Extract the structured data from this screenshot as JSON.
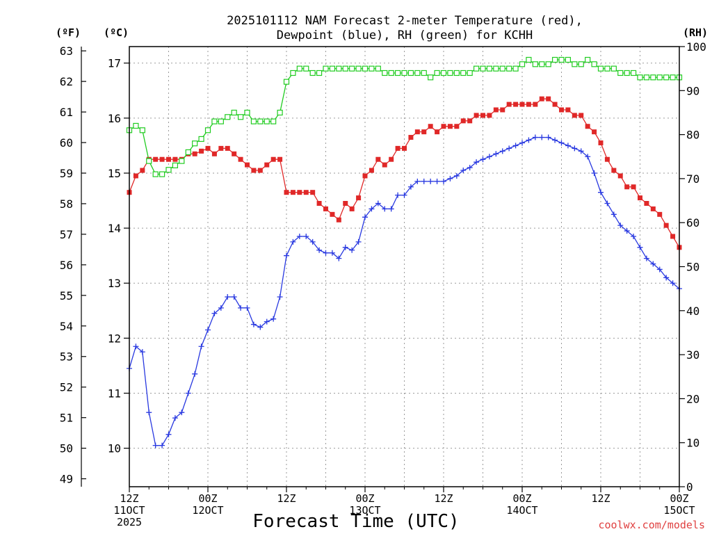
{
  "chart_data": {
    "type": "line",
    "title_line1": "2025101112 NAM Forecast 2-meter Temperature (red),",
    "title_line2": "Dewpoint (blue), RH (green) for KCHH",
    "xlabel": "Forecast Time (UTC)",
    "credit": "coolwx.com/models",
    "unit_f": "(ºF)",
    "unit_c": "(ºC)",
    "unit_rh": "(RH)",
    "x_hours_range": [
      0,
      84
    ],
    "celsius_range": [
      9.3,
      17.3
    ],
    "rh_range": [
      0,
      100
    ],
    "celsius_ticks": [
      10,
      11,
      12,
      13,
      14,
      15,
      16,
      17
    ],
    "fahrenheit_ticks": [
      49,
      50,
      51,
      52,
      53,
      54,
      55,
      56,
      57,
      58,
      59,
      60,
      61,
      62,
      63
    ],
    "rh_ticks": [
      0,
      10,
      20,
      30,
      40,
      50,
      60,
      70,
      80,
      90,
      100
    ],
    "x_ticks": [
      {
        "hour": 0,
        "lines": [
          "12Z",
          "11OCT",
          "2025"
        ]
      },
      {
        "hour": 12,
        "lines": [
          "00Z",
          "12OCT"
        ]
      },
      {
        "hour": 24,
        "lines": [
          "12Z"
        ]
      },
      {
        "hour": 36,
        "lines": [
          "00Z",
          "13OCT"
        ]
      },
      {
        "hour": 48,
        "lines": [
          "12Z"
        ]
      },
      {
        "hour": 60,
        "lines": [
          "00Z",
          "14OCT"
        ]
      },
      {
        "hour": 72,
        "lines": [
          "12Z"
        ]
      },
      {
        "hour": 84,
        "lines": [
          "00Z",
          "15OCT"
        ]
      }
    ],
    "hours": [
      0,
      1,
      2,
      3,
      4,
      5,
      6,
      7,
      8,
      9,
      10,
      11,
      12,
      13,
      14,
      15,
      16,
      17,
      18,
      19,
      20,
      21,
      22,
      23,
      24,
      25,
      26,
      27,
      28,
      29,
      30,
      31,
      32,
      33,
      34,
      35,
      36,
      37,
      38,
      39,
      40,
      41,
      42,
      43,
      44,
      45,
      46,
      47,
      48,
      49,
      50,
      51,
      52,
      53,
      54,
      55,
      56,
      57,
      58,
      59,
      60,
      61,
      62,
      63,
      64,
      65,
      66,
      67,
      68,
      69,
      70,
      71,
      72,
      73,
      74,
      75,
      76,
      77,
      78,
      79,
      80,
      81,
      82,
      83,
      84
    ],
    "series": [
      {
        "name": "Temperature",
        "color": "#e02828",
        "axis": "celsius",
        "marker": "filled-square",
        "values": [
          14.65,
          14.95,
          15.05,
          15.25,
          15.25,
          15.25,
          15.25,
          15.25,
          15.25,
          15.35,
          15.35,
          15.4,
          15.45,
          15.35,
          15.45,
          15.45,
          15.35,
          15.25,
          15.15,
          15.05,
          15.05,
          15.15,
          15.25,
          15.25,
          14.65,
          14.65,
          14.65,
          14.65,
          14.65,
          14.45,
          14.35,
          14.25,
          14.15,
          14.45,
          14.35,
          14.55,
          14.95,
          15.05,
          15.25,
          15.15,
          15.25,
          15.45,
          15.45,
          15.65,
          15.75,
          15.75,
          15.85,
          15.75,
          15.85,
          15.85,
          15.85,
          15.95,
          15.95,
          16.05,
          16.05,
          16.05,
          16.15,
          16.15,
          16.25,
          16.25,
          16.25,
          16.25,
          16.25,
          16.35,
          16.35,
          16.25,
          16.15,
          16.15,
          16.05,
          16.05,
          15.85,
          15.75,
          15.55,
          15.25,
          15.05,
          14.95,
          14.75,
          14.75,
          14.55,
          14.45,
          14.35,
          14.25,
          14.05,
          13.85,
          13.65
        ]
      },
      {
        "name": "Dewpoint",
        "color": "#2838e0",
        "axis": "celsius",
        "marker": "plus",
        "values": [
          11.45,
          11.85,
          11.75,
          10.65,
          10.05,
          10.05,
          10.25,
          10.55,
          10.65,
          11.0,
          11.35,
          11.85,
          12.15,
          12.45,
          12.55,
          12.75,
          12.75,
          12.55,
          12.55,
          12.25,
          12.2,
          12.3,
          12.35,
          12.75,
          13.5,
          13.75,
          13.85,
          13.85,
          13.75,
          13.6,
          13.55,
          13.55,
          13.45,
          13.65,
          13.6,
          13.75,
          14.2,
          14.35,
          14.45,
          14.35,
          14.35,
          14.6,
          14.6,
          14.75,
          14.85,
          14.85,
          14.85,
          14.85,
          14.85,
          14.9,
          14.95,
          15.05,
          15.1,
          15.2,
          15.25,
          15.3,
          15.35,
          15.4,
          15.45,
          15.5,
          15.55,
          15.6,
          15.65,
          15.65,
          15.65,
          15.6,
          15.55,
          15.5,
          15.45,
          15.4,
          15.3,
          15.0,
          14.65,
          14.45,
          14.25,
          14.05,
          13.95,
          13.85,
          13.65,
          13.45,
          13.35,
          13.25,
          13.1,
          13.0,
          12.9
        ]
      },
      {
        "name": "RH",
        "color": "#20cc20",
        "axis": "rh",
        "marker": "open-square",
        "values": [
          81,
          82,
          81,
          74,
          71,
          71,
          72,
          73,
          74,
          76,
          78,
          79,
          81,
          83,
          83,
          84,
          85,
          84,
          85,
          83,
          83,
          83,
          83,
          85,
          92,
          94,
          95,
          95,
          94,
          94,
          95,
          95,
          95,
          95,
          95,
          95,
          95,
          95,
          95,
          94,
          94,
          94,
          94,
          94,
          94,
          94,
          93,
          94,
          94,
          94,
          94,
          94,
          94,
          95,
          95,
          95,
          95,
          95,
          95,
          95,
          96,
          97,
          96,
          96,
          96,
          97,
          97,
          97,
          96,
          96,
          97,
          96,
          95,
          95,
          95,
          94,
          94,
          94,
          93,
          93,
          93,
          93,
          93,
          93,
          93
        ]
      }
    ]
  }
}
